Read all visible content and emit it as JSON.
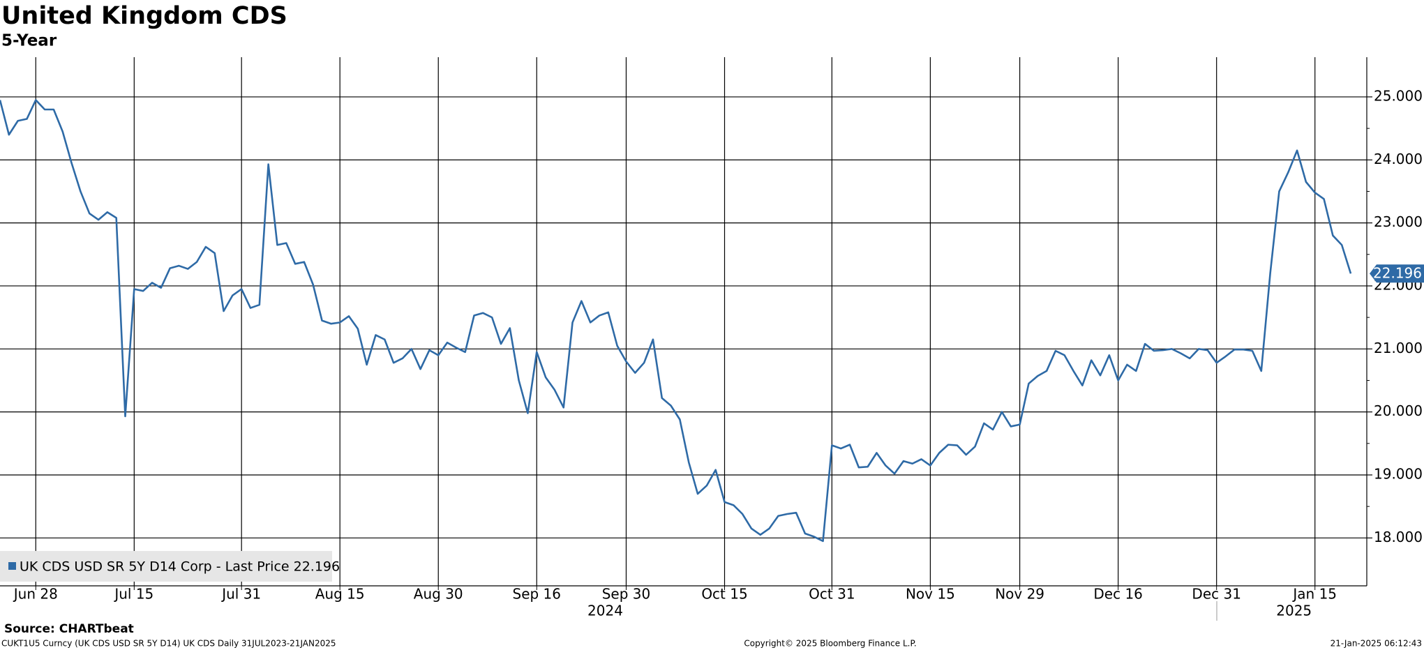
{
  "chart_data": {
    "type": "line",
    "title": "United Kingdom CDS",
    "subtitle": "5-Year",
    "categories": [
      null,
      null,
      null,
      null,
      "Jun 28",
      null,
      null,
      null,
      null,
      null,
      null,
      null,
      null,
      null,
      null,
      "Jul 15",
      null,
      null,
      null,
      null,
      null,
      null,
      null,
      null,
      null,
      null,
      null,
      "Jul 31",
      null,
      null,
      null,
      null,
      null,
      null,
      null,
      null,
      null,
      null,
      "Aug 15",
      null,
      null,
      null,
      null,
      null,
      null,
      null,
      null,
      null,
      null,
      "Aug 30",
      null,
      null,
      null,
      null,
      null,
      null,
      null,
      null,
      null,
      null,
      "Sep 16",
      null,
      null,
      null,
      null,
      null,
      null,
      null,
      null,
      null,
      "Sep 30",
      null,
      null,
      null,
      null,
      null,
      null,
      null,
      null,
      null,
      null,
      "Oct 15",
      null,
      null,
      null,
      null,
      null,
      null,
      null,
      null,
      null,
      null,
      null,
      "Oct 31",
      null,
      null,
      null,
      null,
      null,
      null,
      null,
      null,
      null,
      null,
      "Nov 15",
      null,
      null,
      null,
      null,
      null,
      null,
      null,
      null,
      null,
      "Nov 29",
      null,
      null,
      null,
      null,
      null,
      null,
      null,
      null,
      null,
      null,
      "Dec 16",
      null,
      null,
      null,
      null,
      null,
      null,
      null,
      null,
      null,
      null,
      "Dec 31",
      null,
      null,
      null,
      null,
      null,
      null,
      null,
      null,
      null,
      null,
      "Jan 15",
      null,
      null,
      null,
      null
    ],
    "year_categories": [
      null,
      null,
      null,
      null,
      null,
      null,
      null,
      null,
      null,
      null,
      null,
      null,
      null,
      null,
      null,
      null,
      null,
      null,
      null,
      null,
      null,
      null,
      null,
      null,
      null,
      null,
      null,
      null,
      null,
      null,
      null,
      null,
      null,
      null,
      null,
      null,
      null,
      null,
      null,
      null,
      null,
      null,
      null,
      null,
      null,
      null,
      null,
      null,
      null,
      null,
      null,
      null,
      null,
      null,
      null,
      null,
      null,
      null,
      null,
      null,
      null,
      null,
      null,
      null,
      null,
      null,
      null,
      null,
      null,
      null,
      "2024",
      null,
      null,
      null,
      null,
      null,
      null,
      null,
      null,
      null,
      null,
      null,
      null,
      null,
      null,
      null,
      null,
      null,
      null,
      null,
      null,
      null,
      null,
      null,
      null,
      null,
      null,
      null,
      null,
      null,
      null,
      null,
      null,
      null,
      null,
      null,
      null,
      null,
      null,
      null,
      null,
      null,
      null,
      null,
      null,
      null,
      null,
      null,
      null,
      null,
      null,
      null,
      null,
      null,
      null,
      null,
      null,
      null,
      null,
      null,
      null,
      null,
      null,
      null,
      null,
      null,
      null,
      null,
      null,
      null,
      null,
      null,
      null,
      null,
      null,
      null,
      null,
      "2025",
      null,
      null,
      null,
      null
    ],
    "series": [
      {
        "name": "UK CDS USD SR 5Y D14 Corp - Last Price 22.196",
        "color": "#2e6aa6",
        "values": [
          24.95,
          24.4,
          24.62,
          24.65,
          24.95,
          24.8,
          24.8,
          24.45,
          23.95,
          23.5,
          23.15,
          23.05,
          23.17,
          23.08,
          19.93,
          21.95,
          21.92,
          22.05,
          21.97,
          22.28,
          22.32,
          22.27,
          22.38,
          22.62,
          22.52,
          21.6,
          21.85,
          21.95,
          21.65,
          21.7,
          23.93,
          22.65,
          22.68,
          22.35,
          22.38,
          22.02,
          21.45,
          21.4,
          21.42,
          21.52,
          21.32,
          20.75,
          21.22,
          21.15,
          20.78,
          20.85,
          21.0,
          20.68,
          20.98,
          20.9,
          21.1,
          21.02,
          20.95,
          21.53,
          21.57,
          21.5,
          21.08,
          21.33,
          20.5,
          19.98,
          20.95,
          20.55,
          20.35,
          20.07,
          21.42,
          21.76,
          21.42,
          21.53,
          21.58,
          21.05,
          20.8,
          20.62,
          20.78,
          21.15,
          20.22,
          20.1,
          19.88,
          19.2,
          18.7,
          18.83,
          19.08,
          18.57,
          18.52,
          18.38,
          18.15,
          18.05,
          18.15,
          18.35,
          18.38,
          18.4,
          18.07,
          18.02,
          17.95,
          19.47,
          19.42,
          19.48,
          19.12,
          19.13,
          19.35,
          19.15,
          19.02,
          19.22,
          19.18,
          19.25,
          19.15,
          19.35,
          19.48,
          19.47,
          19.32,
          19.45,
          19.82,
          19.72,
          20.0,
          19.77,
          19.8,
          20.45,
          20.57,
          20.65,
          20.97,
          20.9,
          20.65,
          20.42,
          20.82,
          20.58,
          20.9,
          20.5,
          20.75,
          20.65,
          21.08,
          20.97,
          20.98,
          21.0,
          20.93,
          20.85,
          21.0,
          20.98,
          20.78,
          20.88,
          20.99,
          20.99,
          20.97,
          20.65,
          22.2,
          23.5,
          23.8,
          24.15,
          23.65,
          23.48,
          23.38,
          22.8,
          22.65,
          22.196
        ]
      }
    ],
    "ylim": [
      17.24,
      25.63
    ],
    "yticks": [
      {
        "value": 18,
        "label": "18.000"
      },
      {
        "value": 19,
        "label": "19.000"
      },
      {
        "value": 20,
        "label": "20.000"
      },
      {
        "value": 21,
        "label": "21.000"
      },
      {
        "value": 22,
        "label": "22.000"
      },
      {
        "value": 23,
        "label": "23.000"
      },
      {
        "value": 24,
        "label": "24.000"
      },
      {
        "value": 25,
        "label": "25.000"
      }
    ],
    "grid": true,
    "legend": "bottom-left",
    "source": "Source: CHARTbeat",
    "footer_left": "CUKT1U5 Curncy (UK CDS USD SR 5Y D14) UK CDS  Daily 31JUL2023-21JAN2025",
    "footer_center": "Copyright© 2025 Bloomberg Finance L.P.",
    "footer_right": "21-Jan-2025 06:12:43"
  }
}
